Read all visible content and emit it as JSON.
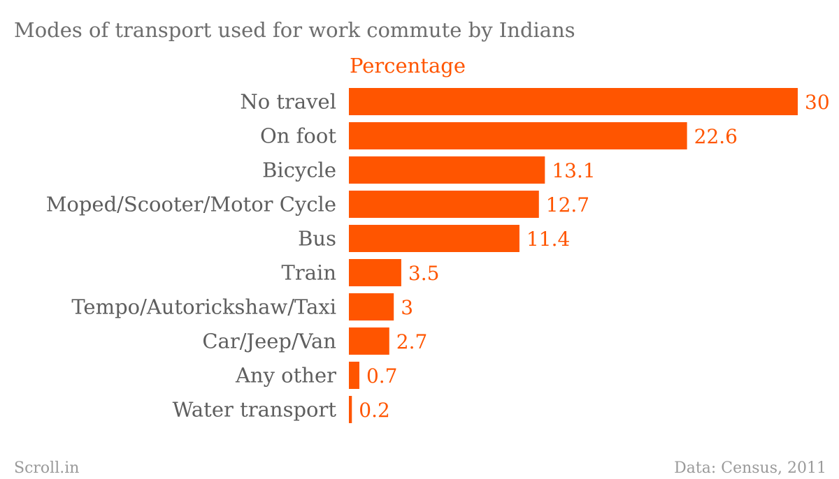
{
  "chart_data": {
    "type": "bar",
    "orientation": "horizontal",
    "title": "Modes of transport used for work commute by Indians",
    "series": [
      {
        "name": "Percentage",
        "values": [
          30,
          22.6,
          13.1,
          12.7,
          11.4,
          3.5,
          3,
          2.7,
          0.7,
          0.2
        ]
      }
    ],
    "categories": [
      "No travel",
      "On foot",
      "Bicycle",
      "Moped/Scooter/Motor Cycle",
      "Bus",
      "Train",
      "Tempo/Autorickshaw/Taxi",
      "Car/Jeep/Van",
      "Any other",
      "Water transport"
    ],
    "value_labels": [
      "30",
      "22.6",
      "13.1",
      "12.7",
      "11.4",
      "3.5",
      "3",
      "2.7",
      "0.7",
      "0.2"
    ],
    "xlim": [
      0,
      30
    ],
    "grid": false,
    "legend": "top",
    "bar_color": "#ff5500",
    "label_color": "#ff5500"
  },
  "footer": {
    "source_brand": "Scroll.in",
    "credit": "Data: Census, 2011"
  }
}
